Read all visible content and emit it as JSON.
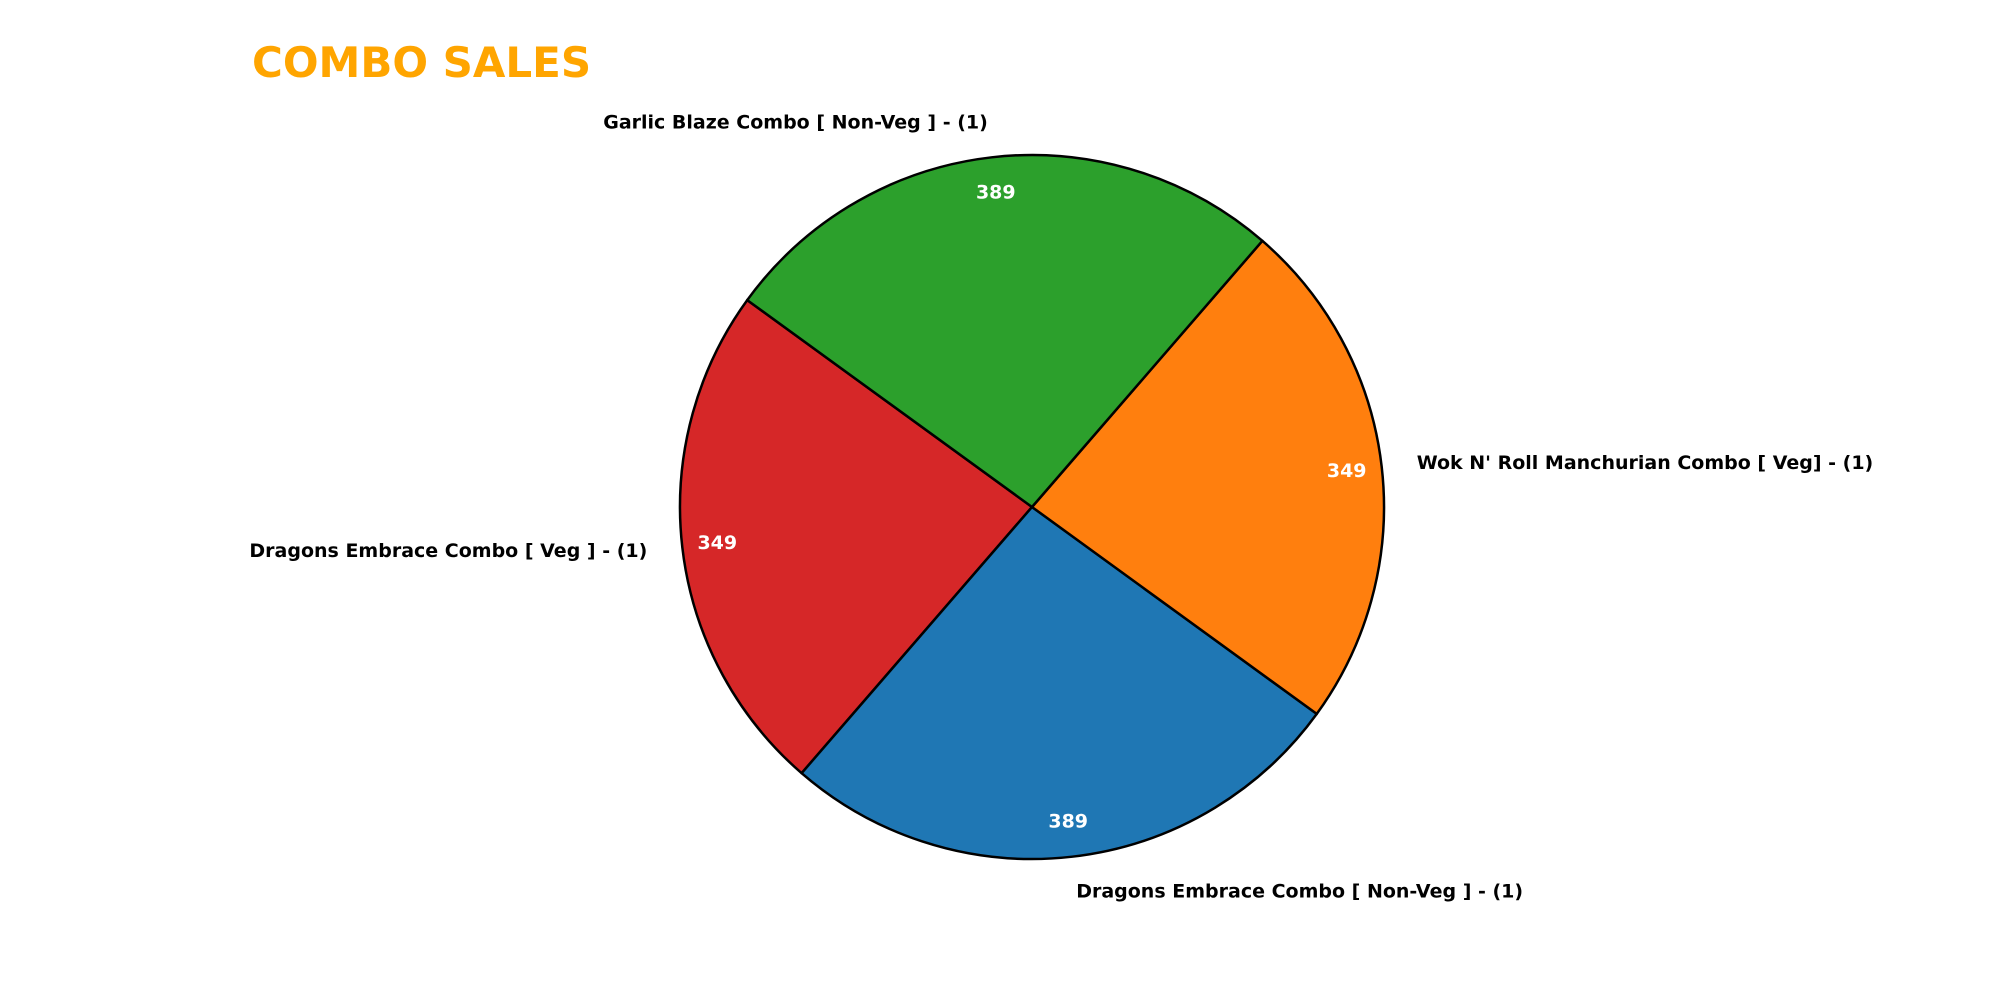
{
  "chart_data": {
    "type": "pie",
    "title": "COMBO SALES",
    "title_color": "#FFA500",
    "edge_color": "#000000",
    "start_angle_deg": 144,
    "direction": "counterclockwise",
    "slices": [
      {
        "label": "Dragons Embrace Combo [ Veg ] - (1)",
        "value": 349,
        "value_label": "349",
        "color": "#d62728"
      },
      {
        "label": "Dragons Embrace Combo [ Non-Veg ] - (1)",
        "value": 389,
        "value_label": "389",
        "color": "#1f77b4"
      },
      {
        "label": "Wok N' Roll Manchurian Combo [ Veg] - (1)",
        "value": 349,
        "value_label": "349",
        "color": "#ff7f0e"
      },
      {
        "label": "Garlic Blaze Combo [ Non-Veg ] - (1)",
        "value": 389,
        "value_label": "389",
        "color": "#2ca02c"
      }
    ]
  }
}
